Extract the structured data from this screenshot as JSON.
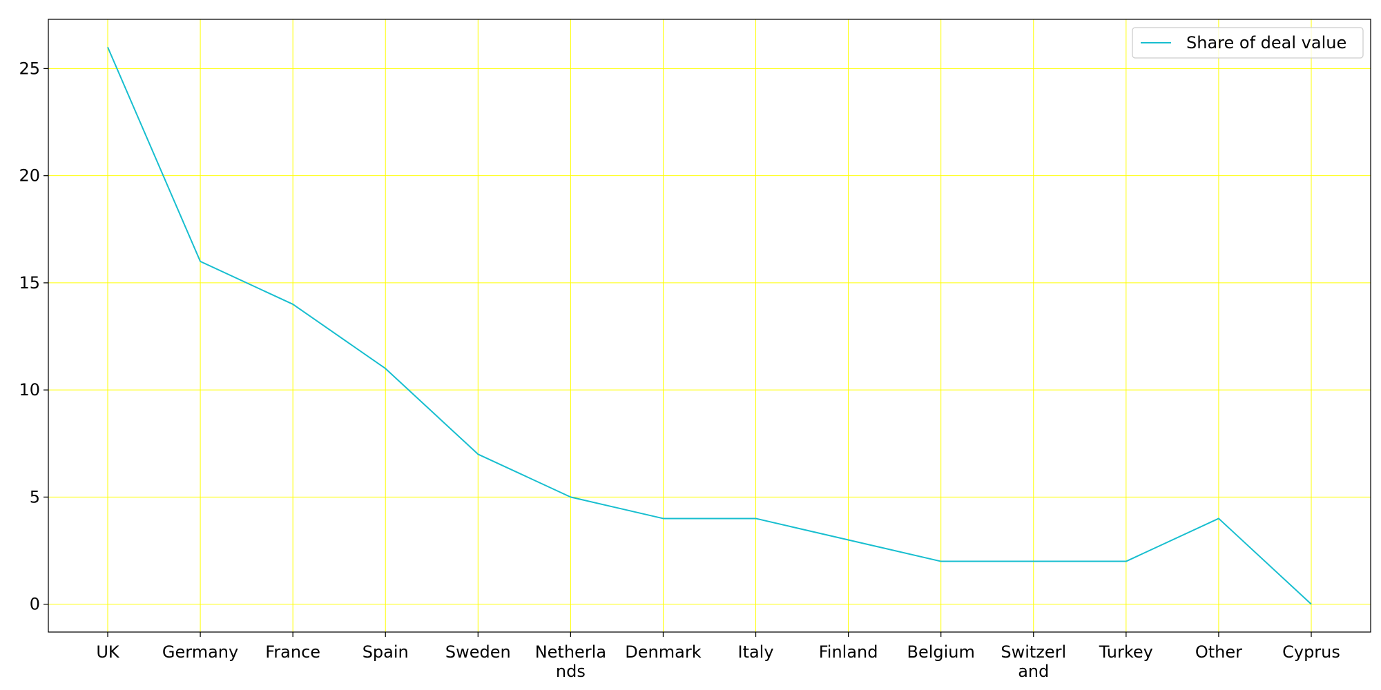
{
  "chart_data": {
    "type": "line",
    "title": "",
    "xlabel": "",
    "ylabel": "",
    "categories": [
      "UK",
      "Germany",
      "France",
      "Spain",
      "Sweden",
      "Netherlands",
      "Denmark",
      "Italy",
      "Finland",
      "Belgium",
      "Switzerland",
      "Turkey",
      "Other",
      "Cyprus"
    ],
    "category_display": [
      [
        "UK"
      ],
      [
        "Germany"
      ],
      [
        "France"
      ],
      [
        "Spain"
      ],
      [
        "Sweden"
      ],
      [
        "Netherla",
        "nds"
      ],
      [
        "Denmark"
      ],
      [
        "Italy"
      ],
      [
        "Finland"
      ],
      [
        "Belgium"
      ],
      [
        "Switzerl",
        "and"
      ],
      [
        "Turkey"
      ],
      [
        "Other"
      ],
      [
        "Cyprus"
      ]
    ],
    "series": [
      {
        "name": "Share of deal value",
        "values": [
          26,
          16,
          14,
          11,
          7,
          5,
          4,
          4,
          3,
          2,
          2,
          2,
          4,
          0
        ],
        "color": "#17becf"
      }
    ],
    "yticks": [
      0,
      5,
      10,
      15,
      20,
      25
    ],
    "ylim": [
      -1.3,
      27.3
    ],
    "grid": true,
    "grid_color": "#ffff00",
    "legend_position": "top-right"
  }
}
